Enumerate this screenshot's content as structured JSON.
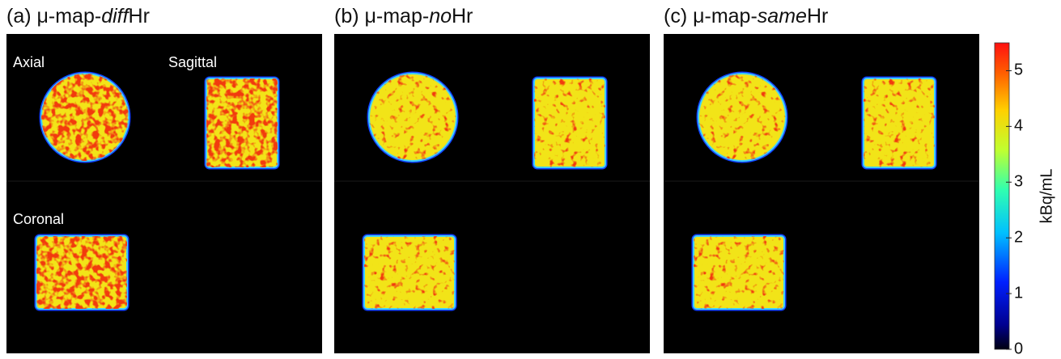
{
  "panels": [
    {
      "title": {
        "prefix": "(a) μ-map-",
        "emphasis": "diff",
        "suffix": "Hr"
      },
      "labels": [
        "Axial",
        "Sagittal",
        "Coronal"
      ]
    },
    {
      "title": {
        "prefix": "(b) μ-map-",
        "emphasis": "no",
        "suffix": "Hr"
      }
    },
    {
      "title": {
        "prefix": "(c) μ-map-",
        "emphasis": "same",
        "suffix": "Hr"
      }
    }
  ],
  "colorbar": {
    "label": "kBq/mL",
    "lim": [
      0,
      5.5
    ],
    "ticks": [
      0,
      1,
      2,
      3,
      4,
      5
    ]
  }
}
